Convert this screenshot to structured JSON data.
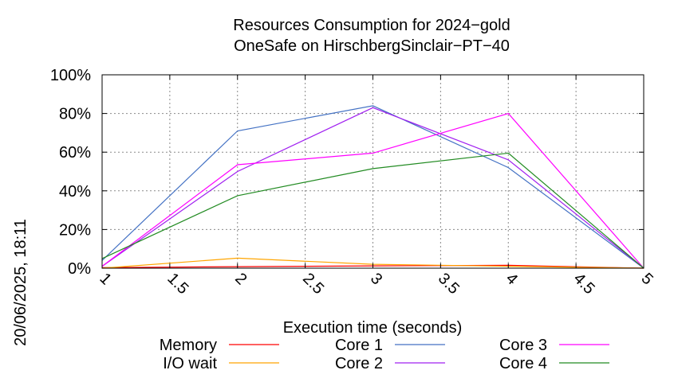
{
  "chart_data": {
    "type": "line",
    "title": "Resources Consumption for 2024−gold",
    "subtitle": "OneSafe on HirschbergSinclair−PT−40",
    "xlabel": "Execution time (seconds)",
    "ylabel": "",
    "side_label": "20/06/2025, 18:11",
    "xlim": [
      1,
      5
    ],
    "ylim": [
      0,
      100
    ],
    "x_ticks": [
      1,
      1.5,
      2,
      2.5,
      3,
      3.5,
      4,
      4.5,
      5
    ],
    "x_tick_labels": [
      "1",
      "1.5",
      "2",
      "2.5",
      "3",
      "3.5",
      "4",
      "4.5",
      "5"
    ],
    "y_ticks": [
      0,
      20,
      40,
      60,
      80,
      100
    ],
    "y_tick_labels": [
      "0%",
      "20%",
      "40%",
      "60%",
      "80%",
      "100%"
    ],
    "grid": true,
    "legend_position": "bottom",
    "x": [
      1,
      2,
      3,
      4,
      5
    ],
    "series": [
      {
        "name": "Memory",
        "color": "#ff0000",
        "values": [
          0.3,
          0.8,
          1.2,
          1.5,
          0
        ]
      },
      {
        "name": "I/O wait",
        "color": "#ffa500",
        "values": [
          0,
          5.2,
          2,
          1,
          0
        ]
      },
      {
        "name": "Core 1",
        "color": "#4472c4",
        "values": [
          4,
          71,
          84,
          52,
          0
        ]
      },
      {
        "name": "Core 2",
        "color": "#a020f0",
        "values": [
          1,
          50,
          83,
          56,
          0
        ]
      },
      {
        "name": "Core 3",
        "color": "#ff00ff",
        "values": [
          1,
          53.5,
          59.5,
          80,
          0
        ]
      },
      {
        "name": "Core 4",
        "color": "#228b22",
        "values": [
          5,
          37.5,
          51.5,
          59.5,
          0
        ]
      }
    ]
  }
}
